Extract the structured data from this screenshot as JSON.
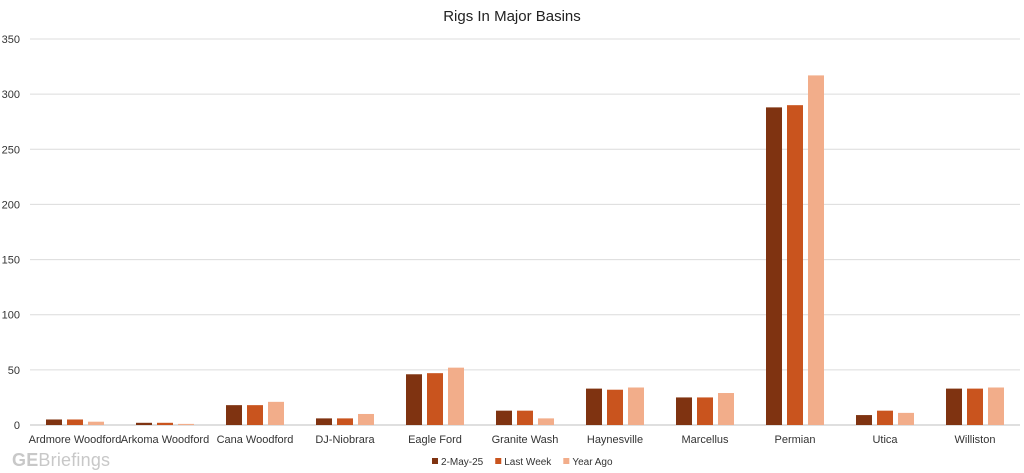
{
  "chart_data": {
    "type": "bar",
    "title": "Rigs In Major Basins",
    "xlabel": "",
    "ylabel": "",
    "ylim": [
      0,
      350
    ],
    "yticks": [
      0,
      50,
      100,
      150,
      200,
      250,
      300,
      350
    ],
    "grid": true,
    "legend_position": "bottom",
    "categories": [
      "Ardmore Woodford",
      "Arkoma Woodford",
      "Cana Woodford",
      "DJ-Niobrara",
      "Eagle Ford",
      "Granite Wash",
      "Haynesville",
      "Marcellus",
      "Permian",
      "Utica",
      "Williston"
    ],
    "series": [
      {
        "name": "2-May-25",
        "color": "#7f3311",
        "values": [
          5,
          2,
          18,
          6,
          46,
          13,
          33,
          25,
          288,
          9,
          33
        ]
      },
      {
        "name": "Last Week",
        "color": "#c9541e",
        "values": [
          5,
          2,
          18,
          6,
          47,
          13,
          32,
          25,
          290,
          13,
          33
        ]
      },
      {
        "name": "Year Ago",
        "color": "#f2ad8a",
        "values": [
          3,
          1,
          21,
          10,
          52,
          6,
          34,
          29,
          317,
          11,
          34
        ]
      }
    ]
  },
  "watermark": {
    "bold": "GE",
    "rest": "Briefings"
  }
}
